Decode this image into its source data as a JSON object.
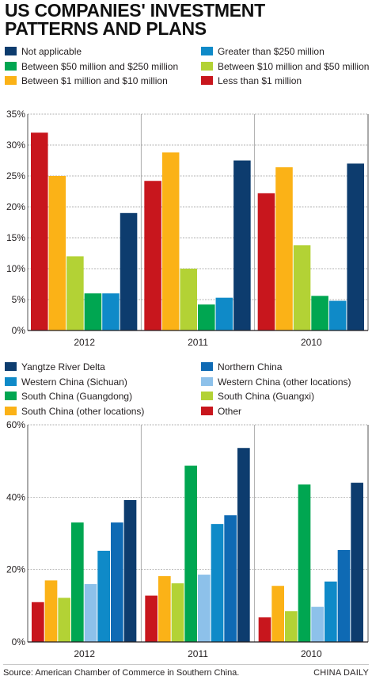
{
  "title": {
    "line1": "US COMPANIES' INVESTMENT",
    "line2": "PATTERNS AND PLANS"
  },
  "source": "Source: American Chamber of Commerce in Southern China.",
  "credit": "CHINA DAILY",
  "chart_data": [
    {
      "type": "bar",
      "title": "",
      "categories": [
        "2012",
        "2011",
        "2010"
      ],
      "ylim": [
        0,
        35
      ],
      "yticks": [
        "0%",
        "5%",
        "10%",
        "15%",
        "20%",
        "25%",
        "30%",
        "35%"
      ],
      "y_unit": "%",
      "grid": true,
      "legend_position": "top",
      "series": [
        {
          "name": "Less than $1 million",
          "color": "#c8161d",
          "values": [
            32,
            24.2,
            22.2
          ]
        },
        {
          "name": "Between $1 million and $10 million",
          "color": "#fbb217",
          "values": [
            25,
            28.8,
            26.4
          ]
        },
        {
          "name": "Between $10 million and $50 million",
          "color": "#b3d235",
          "values": [
            12,
            10,
            13.8
          ]
        },
        {
          "name": "Between $50 million and $250 million",
          "color": "#00a651",
          "values": [
            6,
            4.2,
            5.6
          ]
        },
        {
          "name": "Greater than $250 million",
          "color": "#0f8ac8",
          "values": [
            6,
            5.3,
            4.8
          ]
        },
        {
          "name": "Not applicable",
          "color": "#0d3c6e",
          "values": [
            19,
            27.5,
            27
          ]
        }
      ],
      "legend": [
        {
          "name": "Not applicable",
          "color": "#0d3c6e"
        },
        {
          "name": "Greater than $250 million",
          "color": "#0f8ac8"
        },
        {
          "name": "Between $50 million and $250 million",
          "color": "#00a651"
        },
        {
          "name": "Between $10 million and $50 million",
          "color": "#b3d235"
        },
        {
          "name": "Between $1 million and $10 million",
          "color": "#fbb217"
        },
        {
          "name": "Less than $1 million",
          "color": "#c8161d"
        }
      ]
    },
    {
      "type": "bar",
      "title": "",
      "categories": [
        "2012",
        "2011",
        "2010"
      ],
      "ylim": [
        0,
        60
      ],
      "yticks": [
        "0%",
        "20%",
        "40%",
        "60%"
      ],
      "y_unit": "%",
      "grid": true,
      "legend_position": "top",
      "series": [
        {
          "name": "Other",
          "color": "#c8161d",
          "values": [
            11,
            12.8,
            6.8
          ]
        },
        {
          "name": "South China (other locations)",
          "color": "#fbb217",
          "values": [
            17,
            18.2,
            15.5
          ]
        },
        {
          "name": "South China (Guangxi)",
          "color": "#b3d235",
          "values": [
            12.2,
            16.2,
            8.5
          ]
        },
        {
          "name": "South China (Guangdong)",
          "color": "#00a651",
          "values": [
            33,
            48.7,
            43.5
          ]
        },
        {
          "name": "Western China (other locations)",
          "color": "#8dc1ea",
          "values": [
            16,
            18.6,
            9.7
          ]
        },
        {
          "name": "Western China (Sichuan)",
          "color": "#0f8ac8",
          "values": [
            25.2,
            32.6,
            16.7
          ]
        },
        {
          "name": "Northern China",
          "color": "#0f6ab4",
          "values": [
            33,
            35,
            25.4
          ]
        },
        {
          "name": "Yangtze River Delta",
          "color": "#0d3c6e",
          "values": [
            39.2,
            53.6,
            44
          ]
        }
      ],
      "legend": [
        {
          "name": "Yangtze River Delta",
          "color": "#0d3c6e"
        },
        {
          "name": "Northern China",
          "color": "#0f6ab4"
        },
        {
          "name": "Western China (Sichuan)",
          "color": "#0f8ac8"
        },
        {
          "name": "Western China (other locations)",
          "color": "#8dc1ea"
        },
        {
          "name": "South China (Guangdong)",
          "color": "#00a651"
        },
        {
          "name": "South China (Guangxi)",
          "color": "#b3d235"
        },
        {
          "name": "South China (other locations)",
          "color": "#fbb217"
        },
        {
          "name": "Other",
          "color": "#c8161d"
        }
      ]
    }
  ]
}
